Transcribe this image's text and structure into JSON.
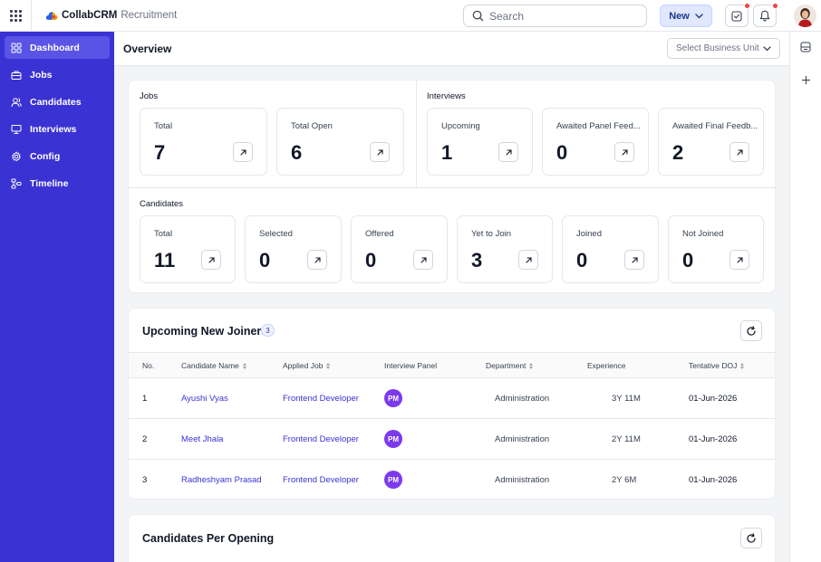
{
  "app": {
    "brand": "CollabCRM",
    "module": "Recruitment"
  },
  "topbar": {
    "search_placeholder": "Search",
    "new_label": "New"
  },
  "sidebar": {
    "items": [
      {
        "label": "Dashboard",
        "icon": "grid-icon",
        "active": true
      },
      {
        "label": "Jobs",
        "icon": "briefcase-icon",
        "active": false
      },
      {
        "label": "Candidates",
        "icon": "users-icon",
        "active": false
      },
      {
        "label": "Interviews",
        "icon": "monitor-icon",
        "active": false
      },
      {
        "label": "Config",
        "icon": "gear-icon",
        "active": false
      },
      {
        "label": "Timeline",
        "icon": "timeline-icon",
        "active": false
      }
    ]
  },
  "header": {
    "title": "Overview",
    "business_unit_placeholder": "Select Business Unit"
  },
  "jobs": {
    "label": "Jobs",
    "stats": [
      {
        "label": "Total",
        "value": "7"
      },
      {
        "label": "Total Open",
        "value": "6"
      }
    ]
  },
  "interviews": {
    "label": "Interviews",
    "stats": [
      {
        "label": "Upcoming",
        "value": "1"
      },
      {
        "label": "Awaited Panel Feed...",
        "value": "0"
      },
      {
        "label": "Awaited Final Feedb...",
        "value": "2"
      }
    ]
  },
  "candidates": {
    "label": "Candidates",
    "stats": [
      {
        "label": "Total",
        "value": "11"
      },
      {
        "label": "Selected",
        "value": "0"
      },
      {
        "label": "Offered",
        "value": "0"
      },
      {
        "label": "Yet to Join",
        "value": "3"
      },
      {
        "label": "Joined",
        "value": "0"
      },
      {
        "label": "Not Joined",
        "value": "0"
      }
    ]
  },
  "joiners": {
    "title": "Upcoming New Joiners",
    "count": "3",
    "columns": [
      "No.",
      "Candidate Name",
      "Applied Job",
      "Interview Panel",
      "Department",
      "Experience",
      "Tentative DOJ"
    ],
    "rows": [
      {
        "no": "1",
        "name": "Ayushi Vyas",
        "job": "Frontend Developer",
        "panel": "PM",
        "department": "Administration",
        "experience": "3Y 11M",
        "doj": "01-Jun-2026"
      },
      {
        "no": "2",
        "name": "Meet Jhala",
        "job": "Frontend Developer",
        "panel": "PM",
        "department": "Administration",
        "experience": "2Y 11M",
        "doj": "01-Jun-2026"
      },
      {
        "no": "3",
        "name": "Radheshyam Prasad",
        "job": "Frontend Developer",
        "panel": "PM",
        "department": "Administration",
        "experience": "2Y 6M",
        "doj": "01-Jun-2026"
      }
    ]
  },
  "openings": {
    "title": "Candidates Per Opening"
  },
  "colors": {
    "sidebar": "#3b32d4",
    "accent": "#3b32d4",
    "badge_pm": "#7c3aed",
    "notification": "#ef4444"
  }
}
